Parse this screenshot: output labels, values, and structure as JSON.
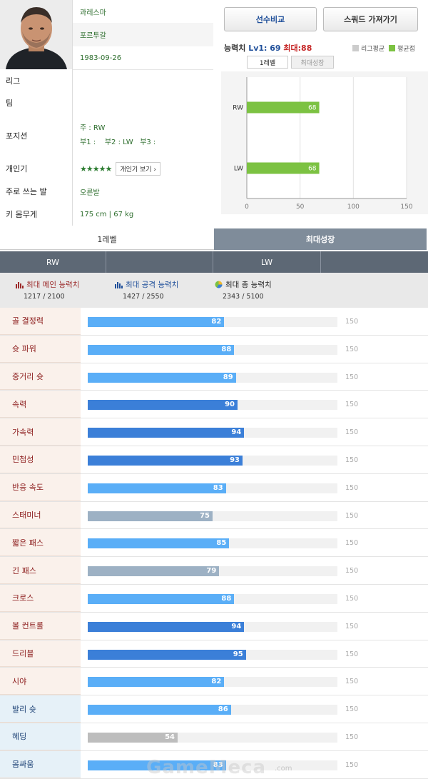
{
  "player": {
    "name": "콰레스마",
    "nation": "포르투갈",
    "birth": "1983-09-26",
    "league": "",
    "team": "",
    "position_main": "주 : RW",
    "position_sub": "부1 :    부2 : LW   부3 :",
    "stars": "★★★★★",
    "popularity_button": "개인기 보기 ›",
    "foot": "오른발",
    "body": "175 cm | 67 kg"
  },
  "labels": {
    "league": "리그",
    "team": "팀",
    "position": "포지션",
    "skill": "개인기",
    "foot": "주로 쓰는 발",
    "body": "키 몸무게"
  },
  "buttons": {
    "compare": "선수비교",
    "squad": "스쿼드 가져가기"
  },
  "ability": {
    "prefix": "능력치 ",
    "lv": "Lv1: 69",
    "max": "최대:88"
  },
  "legend": {
    "league_avg": "리그평균",
    "avg_point": "평균점",
    "league_avg_color": "#cccccc",
    "avg_color": "#7cc242"
  },
  "mini_tabs": {
    "level1": "1레벨",
    "max_growth": "최대성장"
  },
  "chart_data": {
    "type": "bar",
    "orientation": "horizontal",
    "categories": [
      "RW",
      "LW"
    ],
    "series": [
      {
        "name": "평균점",
        "values": [
          68,
          68
        ],
        "color": "#7cc242"
      }
    ],
    "xlim": [
      0,
      150
    ],
    "xticks": [
      0,
      50,
      100,
      150
    ],
    "grid": true
  },
  "level_tabs": {
    "level1": "1레벨",
    "max_growth": "최대성장"
  },
  "position_tabs": [
    "RW",
    "",
    "LW",
    ""
  ],
  "summary": {
    "main": {
      "title": "최대 메인 능력치",
      "value": "1217 / 2100"
    },
    "attack": {
      "title": "최대 공격 능력치",
      "value": "1427 / 2550"
    },
    "total": {
      "title": "최대 총 능력치",
      "value": "2343 / 5100"
    }
  },
  "attr_max": 150,
  "attr_colors": {
    "light": "#5aaef7",
    "dark": "#3b7fd8",
    "gray": "#9db1c4",
    "silver": "#bdbdbd"
  },
  "attributes": [
    {
      "name": "골 결정력",
      "value": 82,
      "style": "light",
      "group": "red"
    },
    {
      "name": "슛 파워",
      "value": 88,
      "style": "light",
      "group": "red"
    },
    {
      "name": "중거리 슛",
      "value": 89,
      "style": "light",
      "group": "red"
    },
    {
      "name": "속력",
      "value": 90,
      "style": "dark",
      "group": "red"
    },
    {
      "name": "가속력",
      "value": 94,
      "style": "dark",
      "group": "red"
    },
    {
      "name": "민첩성",
      "value": 93,
      "style": "dark",
      "group": "red"
    },
    {
      "name": "반응 속도",
      "value": 83,
      "style": "light",
      "group": "red"
    },
    {
      "name": "스태미너",
      "value": 75,
      "style": "gray",
      "group": "red"
    },
    {
      "name": "짧은 패스",
      "value": 85,
      "style": "light",
      "group": "red"
    },
    {
      "name": "긴 패스",
      "value": 79,
      "style": "gray",
      "group": "red"
    },
    {
      "name": "크로스",
      "value": 88,
      "style": "light",
      "group": "red"
    },
    {
      "name": "볼 컨트롤",
      "value": 94,
      "style": "dark",
      "group": "red"
    },
    {
      "name": "드리블",
      "value": 95,
      "style": "dark",
      "group": "red"
    },
    {
      "name": "시야",
      "value": 82,
      "style": "light",
      "group": "red"
    },
    {
      "name": "발리 슛",
      "value": 86,
      "style": "light",
      "group": "blue"
    },
    {
      "name": "헤딩",
      "value": 54,
      "style": "silver",
      "group": "blue"
    },
    {
      "name": "몸싸움",
      "value": 83,
      "style": "light",
      "group": "blue"
    }
  ],
  "watermark": {
    "brand": "GameMeca",
    "domain": ".com"
  }
}
